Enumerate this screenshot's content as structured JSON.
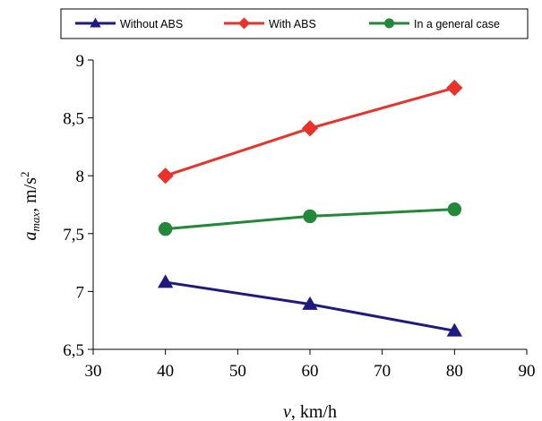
{
  "chart_data": {
    "type": "line",
    "x": [
      40,
      60,
      80
    ],
    "series": [
      {
        "name": "Without ABS",
        "values": [
          7.08,
          6.89,
          6.66
        ],
        "color": "#1f1a80",
        "marker": "triangle"
      },
      {
        "name": "With ABS",
        "values": [
          8.0,
          8.41,
          8.76
        ],
        "color": "#e8322a",
        "marker": "diamond"
      },
      {
        "name": "In a general case",
        "values": [
          7.54,
          7.65,
          7.71
        ],
        "color": "#23883a",
        "marker": "circle"
      }
    ],
    "xlabel": {
      "var": "v",
      "unit": ", km/h"
    },
    "ylabel": {
      "var": "a",
      "sub": "max",
      "unit": ", m/s",
      "sup": "2"
    },
    "xlim": [
      30,
      90
    ],
    "ylim": [
      6.5,
      9
    ],
    "xticks": [
      "30",
      "40",
      "50",
      "60",
      "70",
      "80",
      "90"
    ],
    "yticks": [
      "6,5",
      "7",
      "7,5",
      "8",
      "8,5",
      "9"
    ],
    "legend_position": "top",
    "grid": false
  }
}
